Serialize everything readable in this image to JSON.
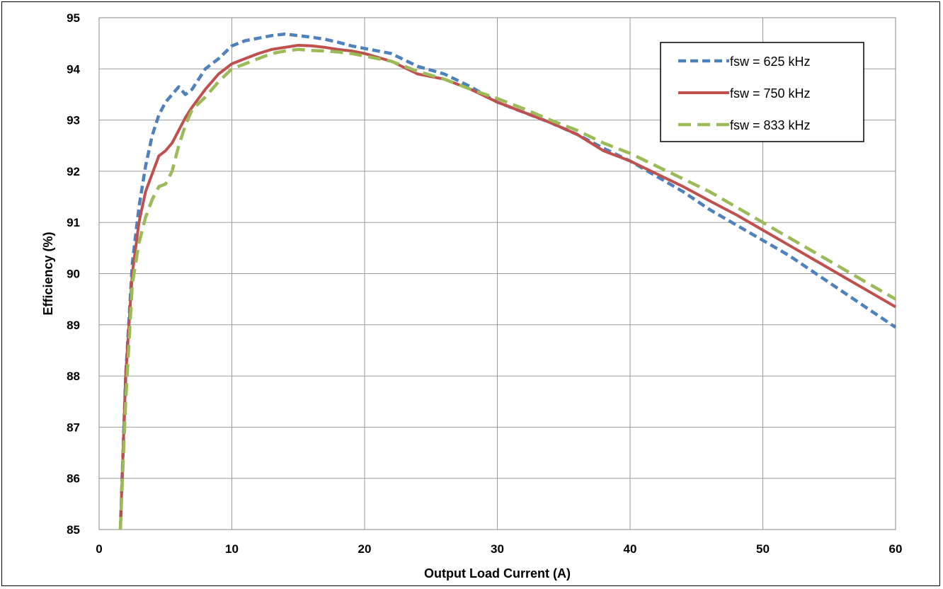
{
  "chart_data": {
    "type": "line",
    "title": "",
    "xlabel": "Output Load Current (A)",
    "ylabel": "Efficiency (%)",
    "xlim": [
      0,
      60
    ],
    "ylim": [
      85,
      95
    ],
    "xticks": [
      "0",
      "10",
      "20",
      "30",
      "40",
      "50",
      "60"
    ],
    "yticks": [
      "85",
      "86",
      "87",
      "88",
      "89",
      "90",
      "91",
      "92",
      "93",
      "94",
      "95"
    ],
    "grid": true,
    "legend_position": "top-right",
    "series": [
      {
        "name": "fsw = 625 kHz",
        "color": "#4F81BD",
        "dash": "dashed",
        "x": [
          1.6,
          2.0,
          2.5,
          3.0,
          3.5,
          4.0,
          4.5,
          5.0,
          5.5,
          6.0,
          6.5,
          7.0,
          8.0,
          9.0,
          10.0,
          11.0,
          12.0,
          13.0,
          14.0,
          15.0,
          16.0,
          17.0,
          18.0,
          19.0,
          20.0,
          22.0,
          24.0,
          26.0,
          28.0,
          30.0,
          32.0,
          34.0,
          36.0,
          38.0,
          40.0,
          42.0,
          44.0,
          46.0,
          48.0,
          50.0,
          52.0,
          54.0,
          56.0,
          58.0,
          60.0
        ],
        "y": [
          85.0,
          88.0,
          90.2,
          91.3,
          92.1,
          92.7,
          93.1,
          93.35,
          93.5,
          93.65,
          93.5,
          93.6,
          94.0,
          94.2,
          94.45,
          94.55,
          94.6,
          94.65,
          94.68,
          94.65,
          94.62,
          94.58,
          94.52,
          94.45,
          94.4,
          94.3,
          94.05,
          93.9,
          93.65,
          93.35,
          93.15,
          92.95,
          92.72,
          92.45,
          92.2,
          91.9,
          91.6,
          91.25,
          90.95,
          90.65,
          90.35,
          90.0,
          89.65,
          89.3,
          88.95
        ]
      },
      {
        "name": "fsw = 750 kHz",
        "color": "#C0504D",
        "dash": "solid",
        "x": [
          1.6,
          2.0,
          2.5,
          3.0,
          3.5,
          4.0,
          4.5,
          5.0,
          5.5,
          6.0,
          6.5,
          7.0,
          8.0,
          9.0,
          10.0,
          11.0,
          12.0,
          13.0,
          14.0,
          15.0,
          16.0,
          17.0,
          18.0,
          19.0,
          20.0,
          22.0,
          24.0,
          26.0,
          28.0,
          30.0,
          32.0,
          34.0,
          36.0,
          38.0,
          40.0,
          42.0,
          44.0,
          46.0,
          48.0,
          50.0,
          52.0,
          54.0,
          56.0,
          58.0,
          60.0
        ],
        "y": [
          85.0,
          88.0,
          90.0,
          91.0,
          91.6,
          91.95,
          92.3,
          92.4,
          92.55,
          92.8,
          93.05,
          93.25,
          93.6,
          93.9,
          94.1,
          94.2,
          94.3,
          94.38,
          94.42,
          94.46,
          94.45,
          94.42,
          94.38,
          94.35,
          94.3,
          94.15,
          93.9,
          93.8,
          93.6,
          93.35,
          93.15,
          92.95,
          92.72,
          92.4,
          92.2,
          91.95,
          91.7,
          91.42,
          91.15,
          90.85,
          90.55,
          90.25,
          89.95,
          89.65,
          89.35
        ]
      },
      {
        "name": "fsw = 833 kHz",
        "color": "#9BBB59",
        "dash": "dashed",
        "x": [
          1.6,
          2.0,
          2.5,
          3.0,
          3.5,
          4.0,
          4.5,
          5.0,
          5.5,
          6.0,
          6.5,
          7.0,
          8.0,
          9.0,
          10.0,
          11.0,
          12.0,
          13.0,
          14.0,
          15.0,
          16.0,
          17.0,
          18.0,
          19.0,
          20.0,
          22.0,
          24.0,
          26.0,
          28.0,
          30.0,
          32.0,
          34.0,
          36.0,
          38.0,
          40.0,
          42.0,
          44.0,
          46.0,
          48.0,
          50.0,
          52.0,
          54.0,
          56.0,
          58.0,
          60.0
        ],
        "y": [
          85.0,
          87.5,
          89.8,
          90.6,
          91.1,
          91.45,
          91.7,
          91.75,
          92.0,
          92.5,
          92.9,
          93.2,
          93.45,
          93.75,
          94.0,
          94.1,
          94.2,
          94.3,
          94.35,
          94.38,
          94.36,
          94.35,
          94.33,
          94.3,
          94.25,
          94.15,
          93.95,
          93.8,
          93.6,
          93.42,
          93.22,
          93.0,
          92.8,
          92.55,
          92.35,
          92.1,
          91.85,
          91.6,
          91.3,
          91.0,
          90.7,
          90.4,
          90.1,
          89.8,
          89.5
        ]
      }
    ]
  }
}
